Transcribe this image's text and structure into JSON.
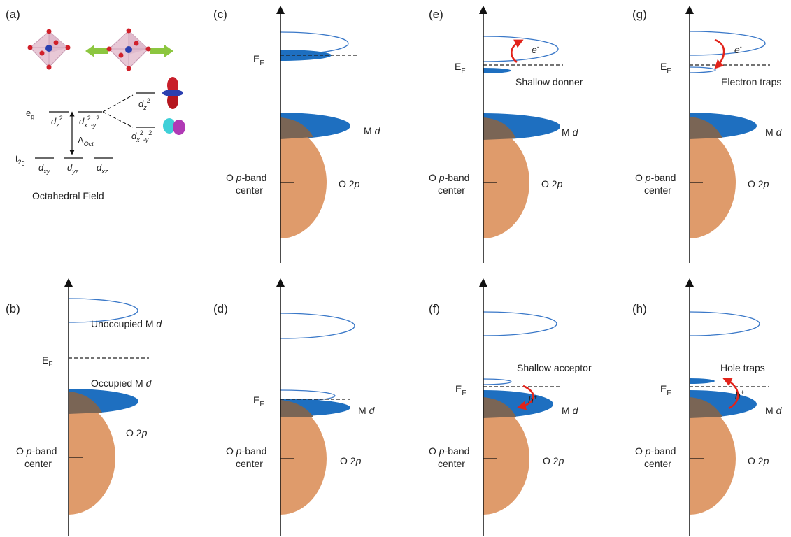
{
  "panels": {
    "a": "(a)",
    "b": "(b)",
    "c": "(c)",
    "d": "(d)",
    "e": "(e)",
    "f": "(f)",
    "g": "(g)",
    "h": "(h)"
  },
  "panel_a": {
    "eg": "e",
    "eg_sub": "g",
    "t2g": "t",
    "t2g_sub": "2g",
    "dz2_base": "d",
    "dz2_sub": "z",
    "dz2_sup": "2",
    "dx2y2_base": "d",
    "dx2y2_sub_x": "x",
    "dx2y2_sup_2a": "2",
    "dx2y2_sub_y": "-y",
    "dx2y2_sup_2b": "2",
    "dxy": "xy",
    "dyz": "yz",
    "dxz": "xz",
    "delta": "Δ",
    "delta_sub": "Oct",
    "caption": "Octahedral Field"
  },
  "labels": {
    "ef_base": "E",
    "ef_sub": "F",
    "m_prefix": "M ",
    "d_italic": "d",
    "o2p_prefix": "O 2",
    "p_italic": "p",
    "o_prefix": "O ",
    "band_suffix": "-band",
    "center": "center",
    "unoccupied": "Unoccupied M ",
    "occupied": "Occupied M ",
    "shallow_donner": "Shallow donner",
    "electron_traps": "Electron traps",
    "shallow_acceptor": "Shallow acceptor",
    "hole_traps": "Hole traps",
    "e_minus": "e",
    "minus": "-",
    "h_plus": "h",
    "plus": "+"
  },
  "colors": {
    "occupied_band": "#1e6fc0",
    "unoccupied_outline": "#3a78c8",
    "o2p_band": "#df9b6b",
    "overlap": "#7a6555",
    "arrow_red": "#e2231a",
    "arrow_green": "#8cc63f",
    "octahedron": "#e8c8d6"
  }
}
